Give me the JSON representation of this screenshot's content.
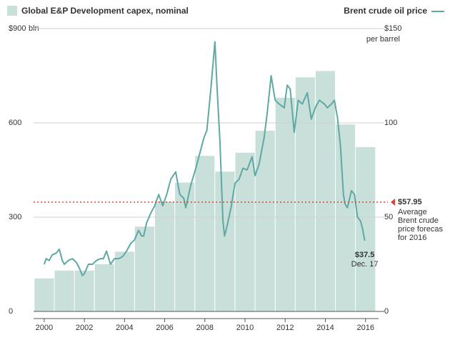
{
  "chart_data": {
    "type": "combo",
    "xlim": [
      1999.47,
      2016.65
    ],
    "xticks": [
      2000,
      2002,
      2004,
      2006,
      2008,
      2010,
      2012,
      2014,
      2016
    ],
    "ylim": [
      0,
      900
    ],
    "yticks": [
      0,
      300,
      600,
      {
        "value": 900,
        "label": "$900"
      }
    ],
    "y_unit": "bln",
    "y2lim": [
      0,
      150
    ],
    "y2ticks": [
      0,
      50,
      100,
      {
        "value": 150,
        "label": "$150"
      }
    ],
    "y2_unit": "per barrel",
    "grid": true,
    "series": [
      {
        "name": "Global E&P Development capex, nominal",
        "type": "bar",
        "color": "#c8e0d9",
        "x": [
          2000,
          2001,
          2002,
          2003,
          2004,
          2005,
          2006,
          2007,
          2008,
          2009,
          2010,
          2011,
          2012,
          2013,
          2014,
          2015,
          2016
        ],
        "values": [
          105,
          130,
          130,
          150,
          190,
          270,
          350,
          410,
          495,
          445,
          505,
          575,
          680,
          745,
          765,
          595,
          523
        ]
      },
      {
        "name": "Brent crude oil price",
        "type": "line",
        "axis": "y2",
        "color": "#5fa8a3",
        "x": [
          2000.0,
          2000.1,
          2000.25,
          2000.4,
          2000.6,
          2000.75,
          2000.9,
          2001.0,
          2001.2,
          2001.4,
          2001.6,
          2001.75,
          2001.9,
          2002.0,
          2002.2,
          2002.4,
          2002.6,
          2002.8,
          2002.95,
          2003.1,
          2003.3,
          2003.5,
          2003.7,
          2003.9,
          2004.1,
          2004.3,
          2004.5,
          2004.7,
          2004.85,
          2004.95,
          2005.1,
          2005.3,
          2005.5,
          2005.7,
          2005.9,
          2006.1,
          2006.3,
          2006.55,
          2006.75,
          2006.95,
          2007.05,
          2007.3,
          2007.55,
          2007.8,
          2007.95,
          2008.1,
          2008.3,
          2008.5,
          2008.6,
          2008.75,
          2008.9,
          2008.98,
          2009.1,
          2009.3,
          2009.5,
          2009.7,
          2009.9,
          2010.1,
          2010.35,
          2010.5,
          2010.7,
          2010.95,
          2011.1,
          2011.3,
          2011.5,
          2011.7,
          2011.95,
          2012.1,
          2012.25,
          2012.45,
          2012.65,
          2012.85,
          2013.1,
          2013.3,
          2013.5,
          2013.7,
          2013.95,
          2014.1,
          2014.3,
          2014.45,
          2014.6,
          2014.75,
          2014.9,
          2014.98,
          2015.1,
          2015.3,
          2015.45,
          2015.6,
          2015.75,
          2015.85,
          2015.96
        ],
        "values": [
          25,
          28,
          27,
          30,
          31,
          33,
          27,
          25,
          27,
          28,
          26,
          23,
          19,
          20,
          25,
          25,
          27,
          28,
          28,
          32,
          25,
          28,
          28,
          29,
          32,
          36,
          38,
          43,
          40,
          40,
          47,
          52,
          56,
          62,
          56,
          62,
          70,
          74,
          62,
          60,
          55,
          67,
          76,
          86,
          92,
          96,
          118,
          143,
          120,
          90,
          48,
          40,
          45,
          55,
          68,
          70,
          76,
          75,
          82,
          72,
          78,
          92,
          105,
          125,
          112,
          110,
          108,
          120,
          118,
          95,
          112,
          110,
          116,
          102,
          108,
          112,
          110,
          108,
          110,
          112,
          103,
          88,
          62,
          57,
          55,
          64,
          62,
          50,
          48,
          44,
          37.5
        ]
      }
    ],
    "reference": {
      "value": 57.95,
      "label": "$57.95",
      "axis": "y2",
      "color": "#d9463a",
      "note": [
        "Average",
        "Brent crude",
        "price forecas",
        "for 2016"
      ]
    },
    "end_label": {
      "value": 37.5,
      "label": "$37.5",
      "date": "Dec. 17"
    }
  }
}
